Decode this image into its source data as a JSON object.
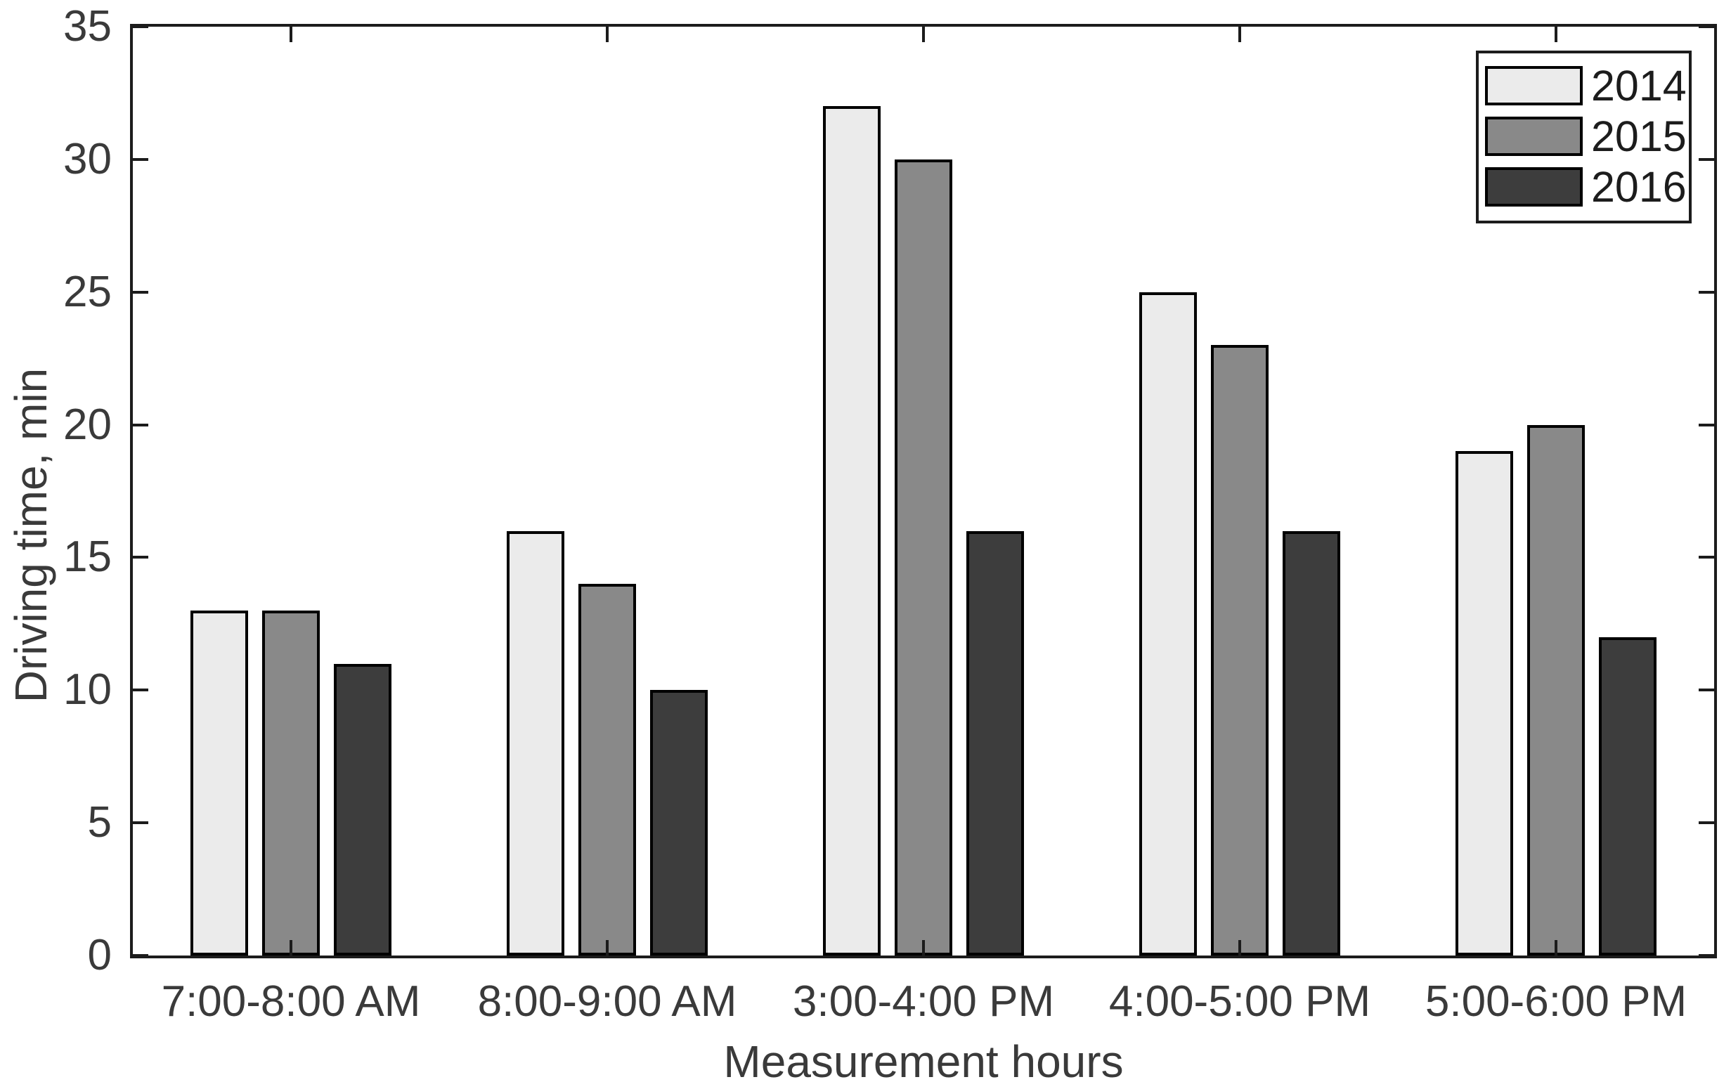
{
  "chart_data": {
    "type": "bar",
    "title": "",
    "xlabel": "Measurement hours",
    "ylabel": "Driving time, min",
    "categories": [
      "7:00-8:00 AM",
      "8:00-9:00 AM",
      "3:00-4:00 PM",
      "4:00-5:00 PM",
      "5:00-6:00 PM"
    ],
    "series": [
      {
        "name": "2014",
        "values": [
          13,
          16,
          32,
          25,
          19
        ],
        "color": "#ebebeb"
      },
      {
        "name": "2015",
        "values": [
          13,
          14,
          30,
          23,
          20
        ],
        "color": "#898989"
      },
      {
        "name": "2016",
        "values": [
          11,
          10,
          16,
          16,
          12
        ],
        "color": "#3d3d3d"
      }
    ],
    "ylim": [
      0,
      35
    ],
    "yticks": [
      0,
      5,
      10,
      15,
      20,
      25,
      30,
      35
    ],
    "grid": false,
    "legend_position": "top-right",
    "bar_edge_color": "#000000",
    "axis_color": "#1c1c1c",
    "text_color": "#3a3a3a",
    "background": "#ffffff"
  }
}
